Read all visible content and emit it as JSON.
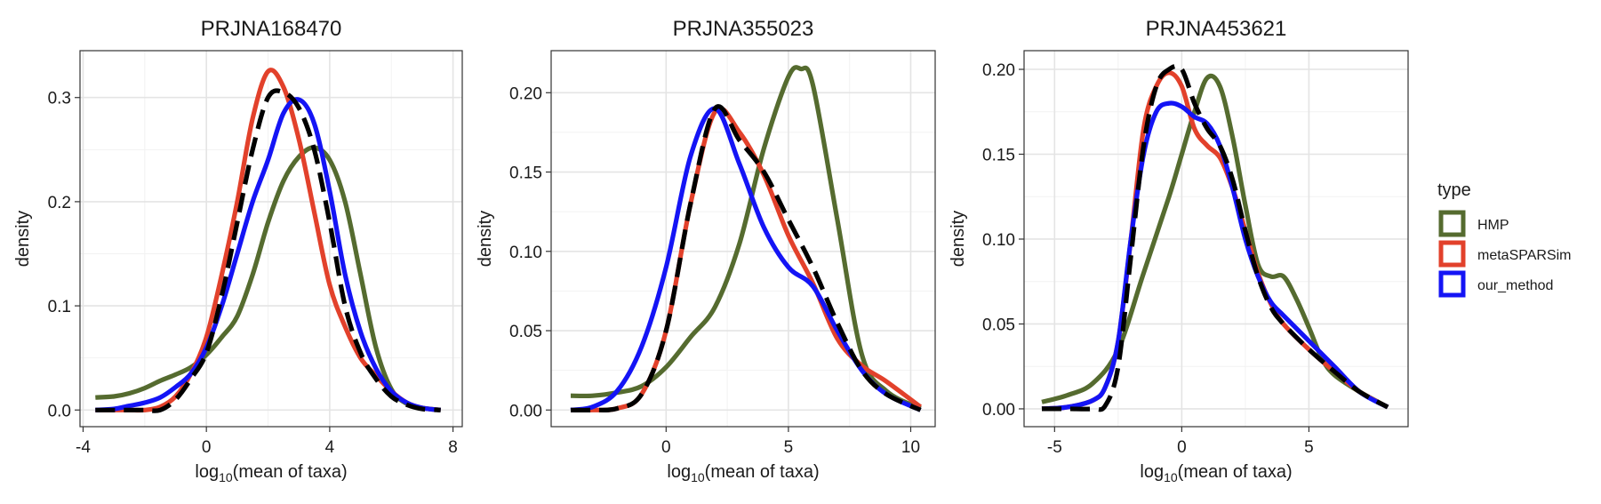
{
  "chart_data": {
    "type": "line",
    "legend": {
      "title": "type",
      "position": "right",
      "entries": [
        {
          "label": "HMP",
          "color": "#556b2f"
        },
        {
          "label": "metaSPARSim",
          "color": "#e2412b"
        },
        {
          "label": "our_method",
          "color": "#1414f5"
        }
      ]
    },
    "reference_line": {
      "color": "#000000",
      "style": "dashed"
    },
    "panels": [
      {
        "title": "PRJNA168470",
        "xlabel": "mean of taxa",
        "ylabel": "density",
        "xlim": [
          -4.1,
          8.3
        ],
        "ylim": [
          -0.016,
          0.345
        ],
        "xticks": [
          -4,
          0,
          4,
          8
        ],
        "xtick_labels": [
          "-4",
          "0",
          "4",
          "8"
        ],
        "yticks": [
          0.0,
          0.1,
          0.2,
          0.3
        ],
        "ytick_labels": [
          "0.0",
          "0.1",
          "0.2",
          "0.3"
        ],
        "series": [
          {
            "name": "HMP",
            "x": [
              -3.6,
              -3,
              -2.5,
              -2,
              -1.5,
              -1,
              -0.5,
              0,
              0.5,
              1,
              1.5,
              2,
              2.5,
              3,
              3.5,
              4,
              4.5,
              5,
              5.5,
              6,
              6.5,
              7,
              7.6
            ],
            "y": [
              0.012,
              0.013,
              0.016,
              0.021,
              0.028,
              0.034,
              0.041,
              0.053,
              0.07,
              0.09,
              0.13,
              0.18,
              0.22,
              0.243,
              0.252,
              0.24,
              0.2,
              0.13,
              0.06,
              0.02,
              0.006,
              0.002,
              0.0
            ]
          },
          {
            "name": "metaSPARSim",
            "x": [
              -3.6,
              -3,
              -2.5,
              -2,
              -1.5,
              -1,
              -0.5,
              0,
              0.5,
              1,
              1.5,
              2,
              2.5,
              3,
              3.5,
              4,
              4.5,
              5,
              5.5,
              6,
              6.5,
              7,
              7.6
            ],
            "y": [
              0.0,
              0.0,
              0.0,
              0.0,
              0.003,
              0.013,
              0.035,
              0.07,
              0.13,
              0.2,
              0.28,
              0.325,
              0.31,
              0.26,
              0.19,
              0.12,
              0.08,
              0.05,
              0.033,
              0.018,
              0.007,
              0.002,
              0.0
            ]
          },
          {
            "name": "our_method",
            "x": [
              -3.6,
              -3,
              -2.5,
              -2,
              -1.5,
              -1,
              -0.5,
              0,
              0.5,
              1,
              1.5,
              2,
              2.5,
              3,
              3.5,
              4,
              4.5,
              5,
              5.5,
              6,
              6.5,
              7,
              7.6
            ],
            "y": [
              0.0,
              0.001,
              0.004,
              0.007,
              0.012,
              0.022,
              0.035,
              0.06,
              0.1,
              0.15,
              0.2,
              0.24,
              0.285,
              0.298,
              0.275,
              0.21,
              0.13,
              0.075,
              0.04,
              0.018,
              0.007,
              0.002,
              0.0
            ]
          },
          {
            "name": "reference",
            "x": [
              -3.6,
              -3,
              -2.5,
              -2,
              -1.5,
              -1,
              -0.5,
              0,
              0.5,
              1,
              1.5,
              2,
              2.5,
              3,
              3.5,
              4,
              4.5,
              5,
              5.5,
              6,
              6.5,
              7,
              7.6
            ],
            "y": [
              0.0,
              0.0,
              0.0,
              0.0,
              0.0,
              0.01,
              0.03,
              0.055,
              0.11,
              0.18,
              0.25,
              0.3,
              0.305,
              0.29,
              0.25,
              0.18,
              0.1,
              0.055,
              0.03,
              0.013,
              0.005,
              0.001,
              0.0
            ]
          }
        ]
      },
      {
        "title": "PRJNA355023",
        "xlabel": "mean of taxa",
        "ylabel": "density",
        "xlim": [
          -4.7,
          11.0
        ],
        "ylim": [
          -0.0105,
          0.2265
        ],
        "xticks": [
          0,
          5,
          10
        ],
        "xtick_labels": [
          "0",
          "5",
          "10"
        ],
        "yticks": [
          0.0,
          0.05,
          0.1,
          0.15,
          0.2
        ],
        "ytick_labels": [
          "0.00",
          "0.05",
          "0.10",
          "0.15",
          "0.20"
        ],
        "series": [
          {
            "name": "HMP",
            "x": [
              -3.9,
              -3,
              -2,
              -1,
              0,
              1,
              2,
              3,
              4,
              5,
              5.5,
              6,
              7,
              8,
              9,
              10.4
            ],
            "y": [
              0.009,
              0.009,
              0.011,
              0.015,
              0.027,
              0.046,
              0.065,
              0.105,
              0.165,
              0.21,
              0.215,
              0.205,
              0.12,
              0.035,
              0.012,
              0.001
            ]
          },
          {
            "name": "metaSPARSim",
            "x": [
              -3.9,
              -3,
              -2,
              -1,
              0,
              1,
              2,
              3,
              4,
              5,
              6,
              7,
              8,
              9,
              10.4
            ],
            "y": [
              0.0,
              0.0,
              0.001,
              0.01,
              0.05,
              0.13,
              0.188,
              0.175,
              0.148,
              0.11,
              0.08,
              0.045,
              0.028,
              0.018,
              0.002
            ]
          },
          {
            "name": "our_method",
            "x": [
              -3.9,
              -3,
              -2,
              -1,
              0,
              1,
              2,
              3,
              4,
              5,
              6,
              7,
              8,
              9,
              10.4
            ],
            "y": [
              0.0,
              0.002,
              0.012,
              0.04,
              0.09,
              0.16,
              0.19,
              0.155,
              0.115,
              0.09,
              0.078,
              0.05,
              0.025,
              0.01,
              0.0
            ]
          },
          {
            "name": "reference",
            "x": [
              -3.9,
              -3,
              -2,
              -1,
              0,
              1,
              2,
              3,
              4,
              5,
              6,
              7,
              8,
              9,
              10.4
            ],
            "y": [
              0.0,
              0.0,
              0.001,
              0.01,
              0.05,
              0.13,
              0.19,
              0.17,
              0.15,
              0.12,
              0.09,
              0.055,
              0.025,
              0.01,
              0.0
            ]
          }
        ]
      },
      {
        "title": "PRJNA453621",
        "xlabel": "mean of taxa",
        "ylabel": "density",
        "xlim": [
          -6.2,
          8.9
        ],
        "ylim": [
          -0.0105,
          0.211
        ],
        "xticks": [
          -5,
          0,
          5
        ],
        "xtick_labels": [
          "-5",
          "0",
          "5"
        ],
        "yticks": [
          0.0,
          0.05,
          0.1,
          0.15,
          0.2
        ],
        "ytick_labels": [
          "0.00",
          "0.05",
          "0.10",
          "0.15",
          "0.20"
        ],
        "series": [
          {
            "name": "HMP",
            "x": [
              -5.5,
              -4.5,
              -3.5,
              -2.5,
              -1.5,
              -0.5,
              0,
              0.5,
              1,
              1.5,
              2,
              2.5,
              3,
              3.5,
              4,
              4.5,
              5,
              5.5,
              6,
              7,
              8.1
            ],
            "y": [
              0.004,
              0.008,
              0.015,
              0.035,
              0.08,
              0.125,
              0.15,
              0.175,
              0.195,
              0.19,
              0.16,
              0.12,
              0.085,
              0.078,
              0.078,
              0.065,
              0.048,
              0.03,
              0.02,
              0.01,
              0.001
            ]
          },
          {
            "name": "metaSPARSim",
            "x": [
              -5.5,
              -4.5,
              -3.5,
              -3,
              -2.5,
              -2,
              -1.5,
              -1,
              -0.5,
              0,
              0.5,
              1,
              1.5,
              2,
              2.5,
              3,
              3.5,
              4,
              5,
              6,
              7,
              8.1
            ],
            "y": [
              0.0,
              0.001,
              0.005,
              0.013,
              0.04,
              0.1,
              0.165,
              0.19,
              0.198,
              0.19,
              0.165,
              0.155,
              0.148,
              0.13,
              0.105,
              0.08,
              0.062,
              0.05,
              0.035,
              0.022,
              0.01,
              0.001
            ]
          },
          {
            "name": "our_method",
            "x": [
              -5.5,
              -4.5,
              -3.5,
              -3,
              -2.5,
              -2,
              -1.5,
              -1,
              -0.5,
              0,
              0.5,
              1,
              1.5,
              2,
              2.5,
              3,
              3.5,
              4,
              5,
              6,
              7,
              8.1
            ],
            "y": [
              0.0,
              0.001,
              0.005,
              0.013,
              0.04,
              0.1,
              0.15,
              0.175,
              0.18,
              0.178,
              0.172,
              0.168,
              0.155,
              0.13,
              0.1,
              0.078,
              0.063,
              0.055,
              0.04,
              0.025,
              0.01,
              0.001
            ]
          },
          {
            "name": "reference",
            "x": [
              -5.5,
              -4.5,
              -3.5,
              -3,
              -2.5,
              -2,
              -1.5,
              -1,
              -0.5,
              0,
              0.5,
              1,
              1.5,
              2,
              2.5,
              3,
              3.5,
              4,
              5,
              6,
              7,
              8.1
            ],
            "y": [
              0.0,
              0.0,
              0.0,
              0.002,
              0.025,
              0.09,
              0.155,
              0.19,
              0.2,
              0.2,
              0.18,
              0.165,
              0.155,
              0.135,
              0.105,
              0.078,
              0.06,
              0.05,
              0.035,
              0.022,
              0.01,
              0.001
            ]
          }
        ]
      }
    ]
  }
}
